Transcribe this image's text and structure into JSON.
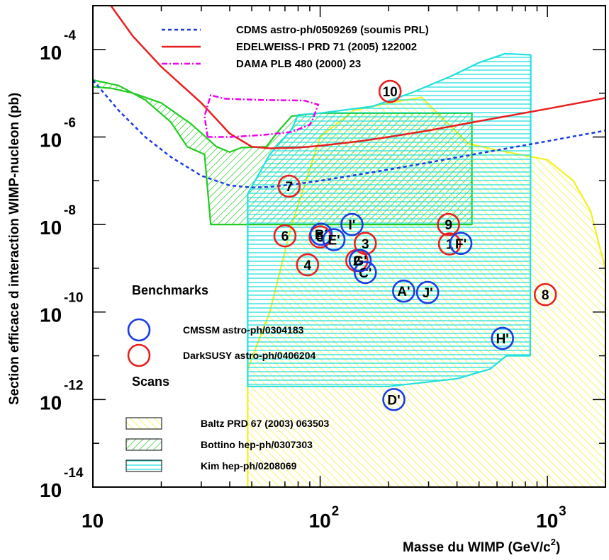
{
  "chart_data": {
    "type": "line",
    "xlabel": "Masse du WIMP (GeV/c",
    "xlabel_sup": "2",
    "xlabel_close": ")",
    "ylabel": "Section efficace d interaction WIMP-nucleon (pb)",
    "x_scale": "log",
    "y_scale": "log",
    "xlim": [
      10,
      1800
    ],
    "ylim": [
      1e-14,
      0.001
    ],
    "x_ticks": [
      {
        "base": "10",
        "exp": ""
      },
      {
        "base": "10",
        "exp": "2"
      },
      {
        "base": "10",
        "exp": "3"
      }
    ],
    "y_ticks": [
      {
        "base": "10",
        "exp": "-4"
      },
      {
        "base": "10",
        "exp": "-6"
      },
      {
        "base": "10",
        "exp": "-8"
      },
      {
        "base": "10",
        "exp": "-10"
      },
      {
        "base": "10",
        "exp": "-12"
      },
      {
        "base": "10",
        "exp": "-14"
      }
    ],
    "limit_curves": [
      {
        "name": "CDMS astro-ph/0509269 (soumis PRL)",
        "color": "#1a3ce0",
        "style": "dashed",
        "points": [
          [
            10,
            2e-05
          ],
          [
            13,
            4e-06
          ],
          [
            17,
            1e-06
          ],
          [
            22,
            3.5e-07
          ],
          [
            30,
            1.3e-07
          ],
          [
            40,
            7.8e-08
          ],
          [
            50,
            7e-08
          ],
          [
            60,
            7.2e-08
          ],
          [
            80,
            8.5e-08
          ],
          [
            100,
            1e-07
          ],
          [
            150,
            1.4e-07
          ],
          [
            200,
            1.8e-07
          ],
          [
            300,
            2.6e-07
          ],
          [
            500,
            4.2e-07
          ],
          [
            1000,
            8e-07
          ],
          [
            1800,
            1.4e-06
          ]
        ]
      },
      {
        "name": "EDELWEISS-I PRD 71 (2005) 122002",
        "color": "#e82020",
        "style": "solid",
        "points": [
          [
            12,
            0.001
          ],
          [
            15,
            0.0002
          ],
          [
            20,
            4e-05
          ],
          [
            30,
            6e-06
          ],
          [
            40,
            1.2e-06
          ],
          [
            50,
            6e-07
          ],
          [
            60,
            5.5e-07
          ],
          [
            80,
            5.7e-07
          ],
          [
            100,
            6.3e-07
          ],
          [
            150,
            8e-07
          ],
          [
            200,
            1e-06
          ],
          [
            300,
            1.4e-06
          ],
          [
            500,
            2.3e-06
          ],
          [
            1000,
            4.4e-06
          ],
          [
            1800,
            7.8e-06
          ]
        ]
      },
      {
        "name": "DAMA PLB 480 (2000) 23",
        "color": "#ee00ee",
        "style": "dashdot",
        "points": [
          [
            32,
            1e-06
          ],
          [
            31,
            3e-06
          ],
          [
            33,
            9e-06
          ],
          [
            38,
            7.5e-06
          ],
          [
            55,
            7e-06
          ],
          [
            85,
            6.8e-06
          ],
          [
            98,
            5.5e-06
          ],
          [
            93,
            2.6e-06
          ],
          [
            90,
            1.9e-06
          ],
          [
            75,
            1.3e-06
          ],
          [
            55,
            1.1e-06
          ],
          [
            40,
            1e-06
          ],
          [
            32,
            1e-06
          ]
        ]
      }
    ],
    "scans": [
      {
        "name": "Baltz PRD 67 (2003) 063503",
        "color": "#f2f020",
        "hatch": "45deg",
        "points": [
          [
            48,
            1e-14
          ],
          [
            48,
            5e-12
          ],
          [
            60,
            1e-10
          ],
          [
            75,
            1e-08
          ],
          [
            100,
            1e-06
          ],
          [
            140,
            4e-06
          ],
          [
            200,
            6e-06
          ],
          [
            280,
            8e-06
          ],
          [
            350,
            2.5e-06
          ],
          [
            450,
            7e-07
          ],
          [
            600,
            5e-07
          ],
          [
            1000,
            3e-07
          ],
          [
            1300,
            1e-07
          ],
          [
            1550,
            2e-08
          ],
          [
            1700,
            3e-09
          ],
          [
            1800,
            1e-09
          ],
          [
            1800,
            1e-14
          ]
        ]
      },
      {
        "name": "Bottino hep-ph/0307303",
        "color": "#22cc22",
        "hatch": "-45deg",
        "points": [
          [
            10,
            2e-05
          ],
          [
            13,
            1.5e-05
          ],
          [
            17,
            7e-06
          ],
          [
            22,
            2.2e-06
          ],
          [
            26,
            6e-07
          ],
          [
            31,
            4e-07
          ],
          [
            33,
            1e-08
          ],
          [
            48,
            1e-08
          ],
          [
            100,
            1e-08
          ],
          [
            200,
            1e-08
          ],
          [
            465,
            1e-08
          ],
          [
            465,
            3.5e-06
          ],
          [
            300,
            3.5e-06
          ],
          [
            200,
            3.5e-06
          ],
          [
            100,
            3.5e-06
          ],
          [
            75,
            3e-06
          ],
          [
            65,
            1.3e-06
          ],
          [
            58,
            6e-07
          ],
          [
            45,
            5.7e-07
          ],
          [
            40,
            4.5e-07
          ],
          [
            35,
            6e-07
          ],
          [
            27,
            2e-06
          ],
          [
            20,
            6e-06
          ],
          [
            15,
            1e-05
          ],
          [
            12,
            1.3e-05
          ],
          [
            10,
            1.4e-05
          ]
        ]
      },
      {
        "name": "Kim hep-ph/0208069",
        "color": "#22e0e0",
        "hatch": "0deg",
        "points": [
          [
            48,
            2e-12
          ],
          [
            48,
            5e-08
          ],
          [
            60,
            4e-07
          ],
          [
            75,
            1.5e-06
          ],
          [
            80,
            3.2e-06
          ],
          [
            100,
            3.5e-06
          ],
          [
            170,
            5e-06
          ],
          [
            250,
            1e-05
          ],
          [
            380,
            2.5e-05
          ],
          [
            500,
            5e-05
          ],
          [
            650,
            8e-05
          ],
          [
            845,
            7.5e-05
          ],
          [
            840,
            1e-11
          ],
          [
            660,
            1e-11
          ],
          [
            560,
            5e-12
          ],
          [
            400,
            3e-12
          ],
          [
            200,
            2e-12
          ],
          [
            100,
            2e-12
          ]
        ]
      }
    ],
    "benchmarks": {
      "title": "Benchmarks",
      "scans_title": "Scans",
      "cmssm": {
        "name": "CMSSM astro-ph/0304183",
        "color": "#1a3ce0",
        "points": [
          {
            "label": "A'",
            "x": 233,
            "y": 3e-10
          },
          {
            "label": "B'",
            "x": 101,
            "y": 6e-09
          },
          {
            "label": "C'",
            "x": 158,
            "y": 8e-10
          },
          {
            "label": "D'",
            "x": 211,
            "y": 1e-12
          },
          {
            "label": "E'",
            "x": 115,
            "y": 4.5e-09
          },
          {
            "label": "F'",
            "x": 416,
            "y": 3.7e-09
          },
          {
            "label": "G'",
            "x": 150,
            "y": 1.5e-09
          },
          {
            "label": "H'",
            "x": 634,
            "y": 2.5e-11
          },
          {
            "label": "I'",
            "x": 138,
            "y": 1e-08
          },
          {
            "label": "J'",
            "x": 297,
            "y": 2.8e-10
          }
        ]
      },
      "darksusy": {
        "name": "DarkSUSY astro-ph/0406204",
        "color": "#e82020",
        "points": [
          {
            "label": "1",
            "x": 371,
            "y": 3.6e-09
          },
          {
            "label": "2",
            "x": 145,
            "y": 1.5e-09
          },
          {
            "label": "3",
            "x": 158,
            "y": 3.7e-09
          },
          {
            "label": "4",
            "x": 88,
            "y": 1.2e-09
          },
          {
            "label": "5",
            "x": 100,
            "y": 5.2e-09
          },
          {
            "label": "6",
            "x": 70,
            "y": 5.5e-09
          },
          {
            "label": "7",
            "x": 73,
            "y": 7.5e-08
          },
          {
            "label": "8",
            "x": 979,
            "y": 2.5e-10
          },
          {
            "label": "9",
            "x": 367,
            "y": 1e-08
          },
          {
            "label": "10",
            "x": 203,
            "y": 1.1e-05
          }
        ]
      }
    }
  }
}
